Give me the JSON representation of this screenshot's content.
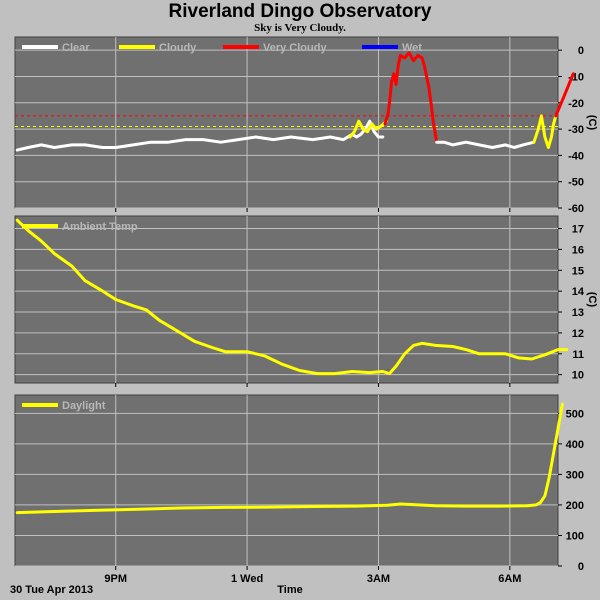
{
  "title": "Riverland Dingo Observatory",
  "subtitle": "Sky is Very Cloudy.",
  "date_label": "30 Tue Apr 2013",
  "x_axis_label": "Time",
  "x_ticks": [
    {
      "label": "9PM",
      "hour": 21
    },
    {
      "label": "1 Wed",
      "hour": 24
    },
    {
      "label": "3AM",
      "hour": 27
    },
    {
      "label": "6AM",
      "hour": 30
    }
  ],
  "x_range_hours": [
    18.7,
    31.1
  ],
  "colors": {
    "panel": "#707070",
    "grid": "#c0c0c0",
    "clear": "#ffffff",
    "cloudy": "#ffff00",
    "very_cloudy": "#ff0000",
    "wet": "#0000ff",
    "ambient": "#ffff00",
    "daylight": "#ffff00"
  },
  "chart_data": [
    {
      "type": "line",
      "panel": "sky",
      "unit": "(C)",
      "ylim": [
        -60,
        5
      ],
      "yticks": [
        0,
        -10,
        -20,
        -30,
        -40,
        -50,
        -60
      ],
      "legend": [
        {
          "label": "Clear",
          "color": "#ffffff"
        },
        {
          "label": "Cloudy",
          "color": "#ffff00"
        },
        {
          "label": "Very Cloudy",
          "color": "#ff0000"
        },
        {
          "label": "Wet",
          "color": "#0000ff"
        }
      ],
      "thresholds": [
        {
          "value": -25,
          "color": "#ff0000"
        },
        {
          "value": -29,
          "color": "#ffff00"
        }
      ],
      "series": [
        {
          "name": "Clear",
          "color": "#ffffff",
          "points": [
            [
              18.75,
              -38
            ],
            [
              19,
              -37
            ],
            [
              19.3,
              -36
            ],
            [
              19.6,
              -37
            ],
            [
              20,
              -36
            ],
            [
              20.3,
              -36
            ],
            [
              20.7,
              -37
            ],
            [
              21,
              -37
            ],
            [
              21.4,
              -36
            ],
            [
              21.8,
              -35
            ],
            [
              22.2,
              -35
            ],
            [
              22.6,
              -34
            ],
            [
              23,
              -34
            ],
            [
              23.4,
              -35
            ],
            [
              23.8,
              -34
            ],
            [
              24.2,
              -33
            ],
            [
              24.6,
              -34
            ],
            [
              25,
              -33
            ],
            [
              25.5,
              -34
            ],
            [
              25.9,
              -33
            ],
            [
              26.2,
              -34
            ],
            [
              26.4,
              -32
            ],
            [
              26.5,
              -33
            ],
            [
              26.6,
              -32
            ],
            [
              26.7,
              -30
            ],
            [
              26.8,
              -27
            ],
            [
              26.9,
              -31
            ],
            [
              27,
              -33
            ],
            [
              27.1,
              -33
            ]
          ]
        },
        {
          "name": "Cloudy",
          "color": "#ffff00",
          "points": [
            [
              26.35,
              -33
            ],
            [
              26.45,
              -31
            ],
            [
              26.55,
              -27
            ],
            [
              26.65,
              -30
            ],
            [
              26.75,
              -31
            ],
            [
              26.85,
              -28
            ],
            [
              26.95,
              -30
            ],
            [
              27.05,
              -29
            ],
            [
              27.12,
              -28
            ],
            [
              27.18,
              -27
            ]
          ]
        },
        {
          "name": "Very Cloudy",
          "color": "#ff0000",
          "points": [
            [
              27.15,
              -28
            ],
            [
              27.22,
              -24
            ],
            [
              27.26,
              -19
            ],
            [
              27.3,
              -12
            ],
            [
              27.35,
              -9
            ],
            [
              27.4,
              -13
            ],
            [
              27.45,
              -6
            ],
            [
              27.5,
              -2
            ],
            [
              27.6,
              -3
            ],
            [
              27.7,
              -1
            ],
            [
              27.8,
              -4
            ],
            [
              27.9,
              -2
            ],
            [
              28,
              -3
            ],
            [
              28.05,
              -6
            ],
            [
              28.1,
              -10
            ],
            [
              28.15,
              -14
            ],
            [
              28.2,
              -20
            ],
            [
              28.25,
              -27
            ],
            [
              28.3,
              -32
            ],
            [
              28.33,
              -35
            ]
          ]
        },
        {
          "name": "Clear",
          "color": "#ffffff",
          "points": [
            [
              28.33,
              -35
            ],
            [
              28.5,
              -35
            ],
            [
              28.7,
              -36
            ],
            [
              29,
              -35
            ],
            [
              29.3,
              -36
            ],
            [
              29.6,
              -37
            ],
            [
              29.9,
              -36
            ],
            [
              30.1,
              -37
            ],
            [
              30.3,
              -36
            ],
            [
              30.55,
              -35
            ]
          ]
        },
        {
          "name": "Cloudy",
          "color": "#ffff00",
          "points": [
            [
              30.55,
              -35
            ],
            [
              30.65,
              -30
            ],
            [
              30.72,
              -25
            ],
            [
              30.8,
              -33
            ],
            [
              30.88,
              -37
            ],
            [
              30.95,
              -33
            ],
            [
              31,
              -28
            ],
            [
              31.05,
              -25
            ]
          ]
        },
        {
          "name": "Very Cloudy",
          "color": "#ff0000",
          "points": [
            [
              31.05,
              -25
            ],
            [
              31.15,
              -21
            ],
            [
              31.25,
              -17
            ],
            [
              31.35,
              -13
            ],
            [
              31.45,
              -9
            ]
          ]
        }
      ]
    },
    {
      "type": "line",
      "panel": "ambient",
      "unit": "(C)",
      "ylim": [
        9.6,
        17.6
      ],
      "yticks": [
        10,
        11,
        12,
        13,
        14,
        15,
        16,
        17
      ],
      "legend": [
        {
          "label": "Ambient Temp",
          "color": "#ffff00"
        }
      ],
      "series": [
        {
          "name": "Ambient Temp",
          "color": "#ffff00",
          "points": [
            [
              18.75,
              17.4
            ],
            [
              19,
              16.9
            ],
            [
              19.3,
              16.4
            ],
            [
              19.6,
              15.8
            ],
            [
              20,
              15.2
            ],
            [
              20.3,
              14.5
            ],
            [
              20.7,
              14.0
            ],
            [
              21,
              13.6
            ],
            [
              21.4,
              13.3
            ],
            [
              21.7,
              13.1
            ],
            [
              22,
              12.6
            ],
            [
              22.4,
              12.1
            ],
            [
              22.8,
              11.6
            ],
            [
              23.2,
              11.3
            ],
            [
              23.5,
              11.1
            ],
            [
              24,
              11.1
            ],
            [
              24.4,
              10.9
            ],
            [
              24.8,
              10.5
            ],
            [
              25.2,
              10.2
            ],
            [
              25.6,
              10.05
            ],
            [
              26,
              10.05
            ],
            [
              26.4,
              10.15
            ],
            [
              26.8,
              10.1
            ],
            [
              27.1,
              10.15
            ],
            [
              27.25,
              10.05
            ],
            [
              27.4,
              10.4
            ],
            [
              27.6,
              11.0
            ],
            [
              27.8,
              11.4
            ],
            [
              28,
              11.5
            ],
            [
              28.3,
              11.4
            ],
            [
              28.7,
              11.35
            ],
            [
              29,
              11.2
            ],
            [
              29.3,
              11.0
            ],
            [
              29.6,
              11.0
            ],
            [
              29.9,
              11.0
            ],
            [
              30.2,
              10.8
            ],
            [
              30.5,
              10.75
            ],
            [
              30.8,
              10.95
            ],
            [
              31.1,
              11.2
            ],
            [
              31.3,
              11.2
            ]
          ]
        }
      ]
    },
    {
      "type": "line",
      "panel": "daylight",
      "unit": "",
      "ylim": [
        0,
        560
      ],
      "yticks": [
        0,
        100,
        200,
        300,
        400,
        500
      ],
      "legend": [
        {
          "label": "Daylight",
          "color": "#ffff00"
        }
      ],
      "series": [
        {
          "name": "Daylight",
          "color": "#ffff00",
          "points": [
            [
              18.75,
              175
            ],
            [
              19.5,
              178
            ],
            [
              20.5,
              182
            ],
            [
              21.5,
              186
            ],
            [
              22.5,
              190
            ],
            [
              23.5,
              192
            ],
            [
              24.5,
              193
            ],
            [
              25.5,
              195
            ],
            [
              26.5,
              196
            ],
            [
              27.2,
              199
            ],
            [
              27.5,
              203
            ],
            [
              27.8,
              201
            ],
            [
              28.3,
              197
            ],
            [
              29,
              196
            ],
            [
              29.8,
              196
            ],
            [
              30.4,
              197
            ],
            [
              30.6,
              200
            ],
            [
              30.7,
              208
            ],
            [
              30.8,
              230
            ],
            [
              30.9,
              290
            ],
            [
              31.0,
              370
            ],
            [
              31.1,
              450
            ],
            [
              31.2,
              530
            ]
          ]
        }
      ]
    }
  ]
}
